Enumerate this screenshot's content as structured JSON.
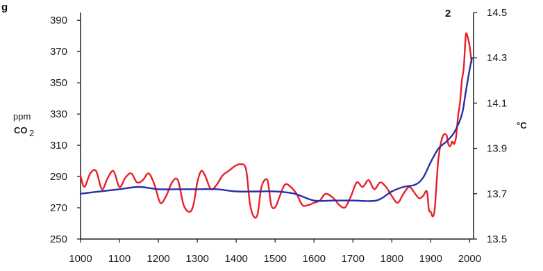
{
  "chart_data": {
    "type": "line",
    "title_fragment": "g",
    "title_subscript": "2",
    "x_ticks": [
      "1000",
      "1100",
      "1200",
      "1300",
      "1400",
      "1500",
      "1600",
      "1700",
      "1800",
      "1900",
      "2000"
    ],
    "xlim": [
      1000,
      2010
    ],
    "left_axis": {
      "unit": "ppm",
      "label": "CO",
      "label_subscript": "2",
      "ylim": [
        250,
        395
      ],
      "ticks": [
        "250",
        "270",
        "290",
        "310",
        "330",
        "350",
        "370",
        "390"
      ]
    },
    "right_axis": {
      "unit": "°C",
      "ylim": [
        13.5,
        14.5
      ],
      "ticks": [
        "13.5",
        "13.7",
        "13.9",
        "14.1",
        "14.3",
        "14.5"
      ]
    },
    "grid": false,
    "series": [
      {
        "axis": "right",
        "color": "#e8202a",
        "x": [
          1000,
          1010,
          1025,
          1040,
          1055,
          1070,
          1085,
          1100,
          1115,
          1130,
          1145,
          1160,
          1175,
          1190,
          1205,
          1220,
          1235,
          1250,
          1265,
          1280,
          1290,
          1300,
          1310,
          1320,
          1335,
          1350,
          1365,
          1380,
          1395,
          1410,
          1425,
          1435,
          1445,
          1455,
          1465,
          1480,
          1490,
          1500,
          1510,
          1525,
          1540,
          1555,
          1570,
          1585,
          1600,
          1615,
          1630,
          1650,
          1665,
          1680,
          1695,
          1710,
          1725,
          1740,
          1755,
          1770,
          1785,
          1800,
          1815,
          1830,
          1845,
          1860,
          1870,
          1880,
          1890,
          1895,
          1900,
          1905,
          1910,
          1915,
          1920,
          1930,
          1940,
          1945,
          1950,
          1955,
          1960,
          1965,
          1970,
          1975,
          1980,
          1985,
          1990,
          1995,
          2000,
          2005
        ],
        "y": [
          13.78,
          13.73,
          13.79,
          13.8,
          13.72,
          13.77,
          13.8,
          13.73,
          13.77,
          13.79,
          13.75,
          13.76,
          13.79,
          13.74,
          13.66,
          13.69,
          13.75,
          13.76,
          13.65,
          13.62,
          13.65,
          13.75,
          13.8,
          13.78,
          13.72,
          13.74,
          13.78,
          13.8,
          13.82,
          13.83,
          13.81,
          13.66,
          13.6,
          13.61,
          13.73,
          13.76,
          13.65,
          13.64,
          13.68,
          13.74,
          13.73,
          13.7,
          13.65,
          13.65,
          13.66,
          13.67,
          13.7,
          13.68,
          13.65,
          13.64,
          13.69,
          13.75,
          13.73,
          13.76,
          13.72,
          13.75,
          13.73,
          13.69,
          13.66,
          13.7,
          13.73,
          13.7,
          13.68,
          13.69,
          13.71,
          13.63,
          13.62,
          13.6,
          13.63,
          13.75,
          13.86,
          13.95,
          13.96,
          13.92,
          13.91,
          13.93,
          13.92,
          13.95,
          14.04,
          14.1,
          14.2,
          14.26,
          14.4,
          14.39,
          14.35,
          14.28
        ]
      },
      {
        "axis": "right",
        "color": "#2b2fa6",
        "x": [
          1000,
          1050,
          1100,
          1150,
          1200,
          1250,
          1300,
          1350,
          1400,
          1450,
          1500,
          1550,
          1600,
          1650,
          1700,
          1760,
          1800,
          1830,
          1860,
          1880,
          1900,
          1920,
          1940,
          1960,
          1980,
          1990,
          2000,
          2006
        ],
        "y": [
          13.7,
          13.71,
          13.72,
          13.73,
          13.72,
          13.72,
          13.72,
          13.72,
          13.71,
          13.71,
          13.71,
          13.7,
          13.67,
          13.67,
          13.67,
          13.67,
          13.71,
          13.73,
          13.74,
          13.77,
          13.84,
          13.9,
          13.93,
          13.97,
          14.05,
          14.15,
          14.25,
          14.3
        ]
      }
    ]
  }
}
